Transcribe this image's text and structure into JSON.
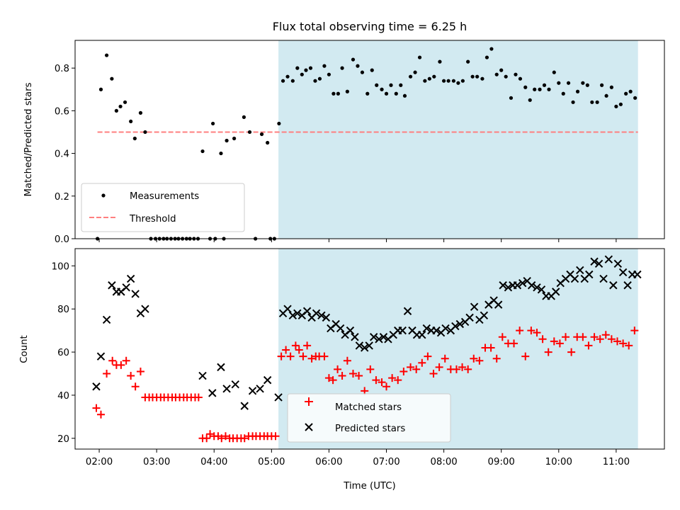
{
  "chart_data": [
    {
      "type": "scatter",
      "title": "Flux total observing time = 6.25 h",
      "ylabel": "Matched/Predicted stars",
      "xlim": [
        1.58,
        11.84
      ],
      "ylim": [
        0,
        0.93
      ],
      "yticks": [
        0.0,
        0.2,
        0.4,
        0.6,
        0.8
      ],
      "ytick_labels": [
        "0.0",
        "0.2",
        "0.4",
        "0.6",
        "0.8"
      ],
      "shaded_region": {
        "x0": 5.12,
        "x1": 11.38,
        "color": "#add8e6"
      },
      "threshold": {
        "name": "Threshold",
        "y": 0.5,
        "x0": 1.97,
        "x1": 11.38,
        "color": "#ff7f7f",
        "style": "dashed"
      },
      "legend": {
        "placement": "lower left",
        "entries": [
          "Measurements",
          "Threshold"
        ]
      },
      "series": [
        {
          "name": "Measurements",
          "marker": "dot",
          "color": "#000000",
          "x": [
            1.97,
            2.03,
            2.13,
            2.22,
            2.3,
            2.37,
            2.45,
            2.55,
            2.62,
            2.72,
            2.8,
            2.9,
            2.98,
            3.05,
            3.12,
            3.18,
            3.25,
            3.32,
            3.38,
            3.45,
            3.52,
            3.58,
            3.65,
            3.72,
            3.8,
            3.93,
            3.98,
            4.02,
            4.12,
            4.17,
            4.22,
            4.35,
            4.52,
            4.62,
            4.72,
            4.83,
            4.93,
            4.98,
            5.05,
            5.13,
            5.2,
            5.28,
            5.37,
            5.45,
            5.53,
            5.6,
            5.68,
            5.76,
            5.84,
            5.92,
            6.0,
            6.08,
            6.16,
            6.23,
            6.32,
            6.42,
            6.5,
            6.58,
            6.67,
            6.75,
            6.83,
            6.92,
            7.0,
            7.08,
            7.17,
            7.25,
            7.32,
            7.42,
            7.5,
            7.58,
            7.67,
            7.75,
            7.83,
            7.93,
            8.0,
            8.08,
            8.17,
            8.25,
            8.33,
            8.42,
            8.5,
            8.58,
            8.67,
            8.75,
            8.83,
            8.92,
            9.0,
            9.08,
            9.17,
            9.25,
            9.33,
            9.42,
            9.5,
            9.58,
            9.67,
            9.75,
            9.83,
            9.92,
            10.0,
            10.08,
            10.17,
            10.25,
            10.33,
            10.42,
            10.5,
            10.58,
            10.67,
            10.75,
            10.83,
            10.92,
            11.0,
            11.08,
            11.17,
            11.25,
            11.33
          ],
          "y": [
            0.0,
            0.7,
            0.86,
            0.75,
            0.6,
            0.62,
            0.64,
            0.55,
            0.47,
            0.59,
            0.5,
            0.0,
            0.0,
            0.0,
            0.0,
            0.0,
            0.0,
            0.0,
            0.0,
            0.0,
            0.0,
            0.0,
            0.0,
            0.0,
            0.41,
            0.0,
            0.54,
            0.0,
            0.4,
            0.0,
            0.46,
            0.47,
            0.57,
            0.5,
            0.0,
            0.49,
            0.45,
            0.0,
            0.0,
            0.54,
            0.74,
            0.76,
            0.74,
            0.8,
            0.77,
            0.79,
            0.8,
            0.74,
            0.75,
            0.81,
            0.77,
            0.68,
            0.68,
            0.8,
            0.69,
            0.84,
            0.81,
            0.78,
            0.68,
            0.79,
            0.72,
            0.7,
            0.68,
            0.72,
            0.68,
            0.72,
            0.67,
            0.76,
            0.78,
            0.85,
            0.74,
            0.75,
            0.76,
            0.83,
            0.74,
            0.74,
            0.74,
            0.73,
            0.74,
            0.83,
            0.76,
            0.76,
            0.75,
            0.85,
            0.89,
            0.77,
            0.79,
            0.76,
            0.66,
            0.77,
            0.75,
            0.71,
            0.65,
            0.7,
            0.7,
            0.72,
            0.7,
            0.78,
            0.73,
            0.68,
            0.73,
            0.64,
            0.69,
            0.73,
            0.72,
            0.64,
            0.64,
            0.72,
            0.67,
            0.71,
            0.62,
            0.63,
            0.68,
            0.69,
            0.66
          ]
        }
      ]
    },
    {
      "type": "scatter",
      "xlabel": "Time (UTC)",
      "ylabel": "Count",
      "xlim": [
        1.58,
        11.84
      ],
      "ylim": [
        15,
        108
      ],
      "xticks": [
        2,
        3,
        4,
        5,
        6,
        7,
        8,
        9,
        10,
        11
      ],
      "xtick_labels": [
        "02:00",
        "03:00",
        "04:00",
        "05:00",
        "06:00",
        "07:00",
        "08:00",
        "09:00",
        "10:00",
        "11:00"
      ],
      "yticks": [
        20,
        40,
        60,
        80,
        100
      ],
      "ytick_labels": [
        "20",
        "40",
        "60",
        "80",
        "100"
      ],
      "shaded_region": {
        "x0": 5.12,
        "x1": 11.38,
        "color": "#add8e6"
      },
      "legend": {
        "placement": "lower center",
        "entries": [
          "Matched stars",
          "Predicted stars"
        ]
      },
      "series": [
        {
          "name": "Matched stars",
          "marker": "plus",
          "color": "#ff0000",
          "x": [
            1.95,
            2.03,
            2.13,
            2.23,
            2.3,
            2.38,
            2.47,
            2.55,
            2.63,
            2.72,
            2.8,
            2.87,
            2.93,
            3.0,
            3.07,
            3.13,
            3.2,
            3.27,
            3.33,
            3.4,
            3.47,
            3.53,
            3.6,
            3.67,
            3.73,
            3.8,
            3.87,
            3.93,
            4.0,
            4.07,
            4.13,
            4.2,
            4.27,
            4.33,
            4.4,
            4.47,
            4.53,
            4.6,
            4.67,
            4.73,
            4.8,
            4.87,
            4.93,
            5.0,
            5.07,
            5.17,
            5.25,
            5.33,
            5.42,
            5.48,
            5.55,
            5.62,
            5.7,
            5.77,
            5.83,
            5.92,
            6.0,
            6.07,
            6.15,
            6.23,
            6.32,
            6.42,
            6.52,
            6.62,
            6.72,
            6.82,
            6.92,
            7.0,
            7.1,
            7.2,
            7.3,
            7.42,
            7.52,
            7.62,
            7.72,
            7.82,
            7.92,
            8.02,
            8.12,
            8.22,
            8.32,
            8.42,
            8.52,
            8.62,
            8.72,
            8.82,
            8.92,
            9.02,
            9.12,
            9.22,
            9.32,
            9.42,
            9.52,
            9.62,
            9.72,
            9.82,
            9.92,
            10.02,
            10.12,
            10.22,
            10.32,
            10.42,
            10.52,
            10.62,
            10.72,
            10.82,
            10.92,
            11.02,
            11.12,
            11.22,
            11.32
          ],
          "y": [
            34,
            31,
            50,
            56,
            54,
            54,
            56,
            49,
            44,
            51,
            39,
            39,
            39,
            39,
            39,
            39,
            39,
            39,
            39,
            39,
            39,
            39,
            39,
            39,
            39,
            20,
            20,
            22,
            21,
            21,
            20,
            21,
            20,
            20,
            20,
            20,
            20,
            21,
            21,
            21,
            21,
            21,
            21,
            21,
            21,
            58,
            61,
            58,
            63,
            61,
            58,
            63,
            57,
            58,
            58,
            58,
            48,
            47,
            52,
            49,
            56,
            50,
            49,
            42,
            52,
            47,
            46,
            44,
            48,
            47,
            51,
            53,
            52,
            55,
            58,
            50,
            53,
            57,
            52,
            52,
            53,
            52,
            57,
            56,
            62,
            62,
            57,
            67,
            64,
            64,
            70,
            58,
            70,
            69,
            66,
            60,
            65,
            64,
            67,
            60,
            67,
            67,
            63,
            67,
            66,
            68,
            66,
            65,
            64,
            63,
            70
          ]
        },
        {
          "name": "Predicted stars",
          "marker": "x",
          "color": "#000000",
          "x": [
            1.95,
            2.03,
            2.13,
            2.22,
            2.3,
            2.38,
            2.47,
            2.55,
            2.63,
            2.72,
            2.8,
            3.8,
            3.97,
            4.12,
            4.22,
            4.37,
            4.53,
            4.67,
            4.8,
            4.93,
            5.12,
            5.2,
            5.28,
            5.37,
            5.45,
            5.53,
            5.62,
            5.7,
            5.78,
            5.87,
            5.95,
            6.03,
            6.12,
            6.2,
            6.28,
            6.37,
            6.45,
            6.53,
            6.62,
            6.7,
            6.78,
            6.87,
            6.95,
            7.03,
            7.12,
            7.2,
            7.28,
            7.37,
            7.45,
            7.53,
            7.62,
            7.7,
            7.78,
            7.87,
            7.95,
            8.03,
            8.12,
            8.2,
            8.28,
            8.37,
            8.45,
            8.53,
            8.62,
            8.7,
            8.78,
            8.87,
            8.95,
            9.03,
            9.12,
            9.2,
            9.28,
            9.37,
            9.45,
            9.53,
            9.62,
            9.7,
            9.78,
            9.87,
            9.95,
            10.03,
            10.12,
            10.2,
            10.28,
            10.37,
            10.45,
            10.53,
            10.62,
            10.7,
            10.78,
            10.87,
            10.95,
            11.03,
            11.12,
            11.2,
            11.28,
            11.37
          ],
          "y": [
            44,
            58,
            75,
            91,
            88,
            88,
            90,
            94,
            87,
            78,
            80,
            49,
            41,
            53,
            43,
            45,
            35,
            42,
            43,
            47,
            39,
            78,
            80,
            77,
            78,
            77,
            79,
            76,
            78,
            77,
            76,
            71,
            73,
            71,
            68,
            70,
            67,
            63,
            62,
            63,
            67,
            66,
            67,
            66,
            68,
            70,
            70,
            79,
            70,
            68,
            68,
            71,
            70,
            70,
            69,
            71,
            70,
            72,
            73,
            74,
            76,
            81,
            75,
            77,
            82,
            84,
            82,
            91,
            90,
            91,
            91,
            92,
            93,
            91,
            90,
            89,
            86,
            86,
            88,
            92,
            94,
            96,
            94,
            98,
            94,
            96,
            102,
            101,
            94,
            103,
            91,
            101,
            97,
            91,
            96,
            96
          ]
        }
      ]
    }
  ]
}
